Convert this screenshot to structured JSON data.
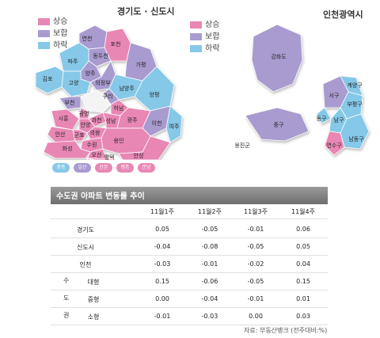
{
  "left_map": {
    "title": "경기도 · 신도시",
    "legend": [
      {
        "label": "상승",
        "color": "#e887b4"
      },
      {
        "label": "보합",
        "color": "#a99bd0"
      },
      {
        "label": "하락",
        "color": "#86c8e8"
      }
    ],
    "region_labels": [
      "연천",
      "포천",
      "동두천",
      "파주",
      "양주",
      "의정부",
      "가평",
      "김포",
      "고양",
      "남양주",
      "구리",
      "양평",
      "부천",
      "광명",
      "과천",
      "하남",
      "시흥",
      "안양",
      "성남",
      "안산",
      "군포",
      "의왕",
      "광주",
      "수원",
      "이천",
      "용인",
      "여주",
      "화성",
      "오산",
      "평택",
      "안성",
      "일산",
      "분당",
      "중동",
      "평촌",
      "산본"
    ],
    "newtown_pills": [
      {
        "label": "중동",
        "color": "#86c8e8"
      },
      {
        "label": "일산",
        "color": "#a99bd0"
      },
      {
        "label": "산본",
        "color": "#e887b4"
      },
      {
        "label": "평촌",
        "color": "#e887b4"
      },
      {
        "label": "분당",
        "color": "#e887b4"
      }
    ]
  },
  "right_map": {
    "title": "인천광역시",
    "legend": [
      {
        "label": "상승",
        "color": "#e887b4"
      },
      {
        "label": "보합",
        "color": "#a99bd0"
      },
      {
        "label": "하락",
        "color": "#86c8e8"
      }
    ],
    "region_labels": [
      "강화도",
      "서구",
      "계양구",
      "부평구",
      "동구",
      "중구",
      "남구",
      "남동구",
      "연수구",
      "옹진군"
    ]
  },
  "table": {
    "title": "수도권 아파트 변동률 추이",
    "side_label": [
      "수",
      "도",
      "권"
    ],
    "source": "자료: 부동산뱅크 (전주대비:%)"
  },
  "chart_data": {
    "type": "table",
    "title": "수도권 아파트 변동률 추이",
    "columns": [
      "11월1주",
      "11월2주",
      "11월3주",
      "11월4주"
    ],
    "rows": [
      {
        "label": "경기도",
        "values": [
          "0.05",
          "-0.05",
          "-0.01",
          "0.06"
        ]
      },
      {
        "label": "신도시",
        "values": [
          "-0.04",
          "-0.08",
          "-0.05",
          "0.05"
        ]
      },
      {
        "label": "인천",
        "values": [
          "-0.03",
          "-0.01",
          "-0.02",
          "0.04"
        ]
      },
      {
        "label": "대형",
        "values": [
          "0.15",
          "-0.06",
          "-0.05",
          "0.15"
        ]
      },
      {
        "label": "중형",
        "values": [
          "0.00",
          "-0.04",
          "-0.01",
          "0.01"
        ]
      },
      {
        "label": "소형",
        "values": [
          "-0.01",
          "-0.03",
          "0.00",
          "0.03"
        ]
      }
    ]
  }
}
